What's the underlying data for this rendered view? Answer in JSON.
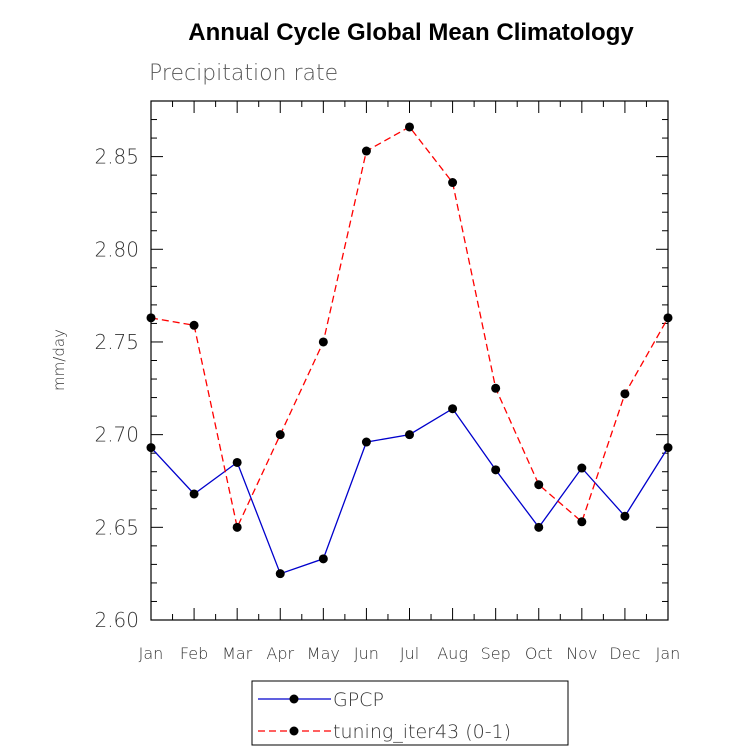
{
  "chart_data": {
    "type": "line",
    "title": "Annual Cycle Global Mean Climatology",
    "subtitle": "Precipitation rate",
    "ylabel": "mm/day",
    "xlabel": "",
    "categories": [
      "Jan",
      "Feb",
      "Mar",
      "Apr",
      "May",
      "Jun",
      "Jul",
      "Aug",
      "Sep",
      "Oct",
      "Nov",
      "Dec",
      "Jan"
    ],
    "ylim": [
      2.6,
      2.88
    ],
    "yticks": [
      "2.60",
      "2.65",
      "2.70",
      "2.75",
      "2.80",
      "2.85"
    ],
    "legend_position": "bottom-center",
    "grid": false,
    "series": [
      {
        "name": "GPCP",
        "color": "#0000cc",
        "dash": "solid",
        "values": [
          2.693,
          2.668,
          2.685,
          2.625,
          2.633,
          2.696,
          2.7,
          2.714,
          2.681,
          2.65,
          2.682,
          2.656,
          2.693
        ]
      },
      {
        "name": "tuning_iter43 (0-1)",
        "color": "#ff0000",
        "dash": "dashed",
        "values": [
          2.763,
          2.759,
          2.65,
          2.7,
          2.75,
          2.853,
          2.866,
          2.836,
          2.725,
          2.673,
          2.653,
          2.722,
          2.763
        ]
      }
    ]
  }
}
